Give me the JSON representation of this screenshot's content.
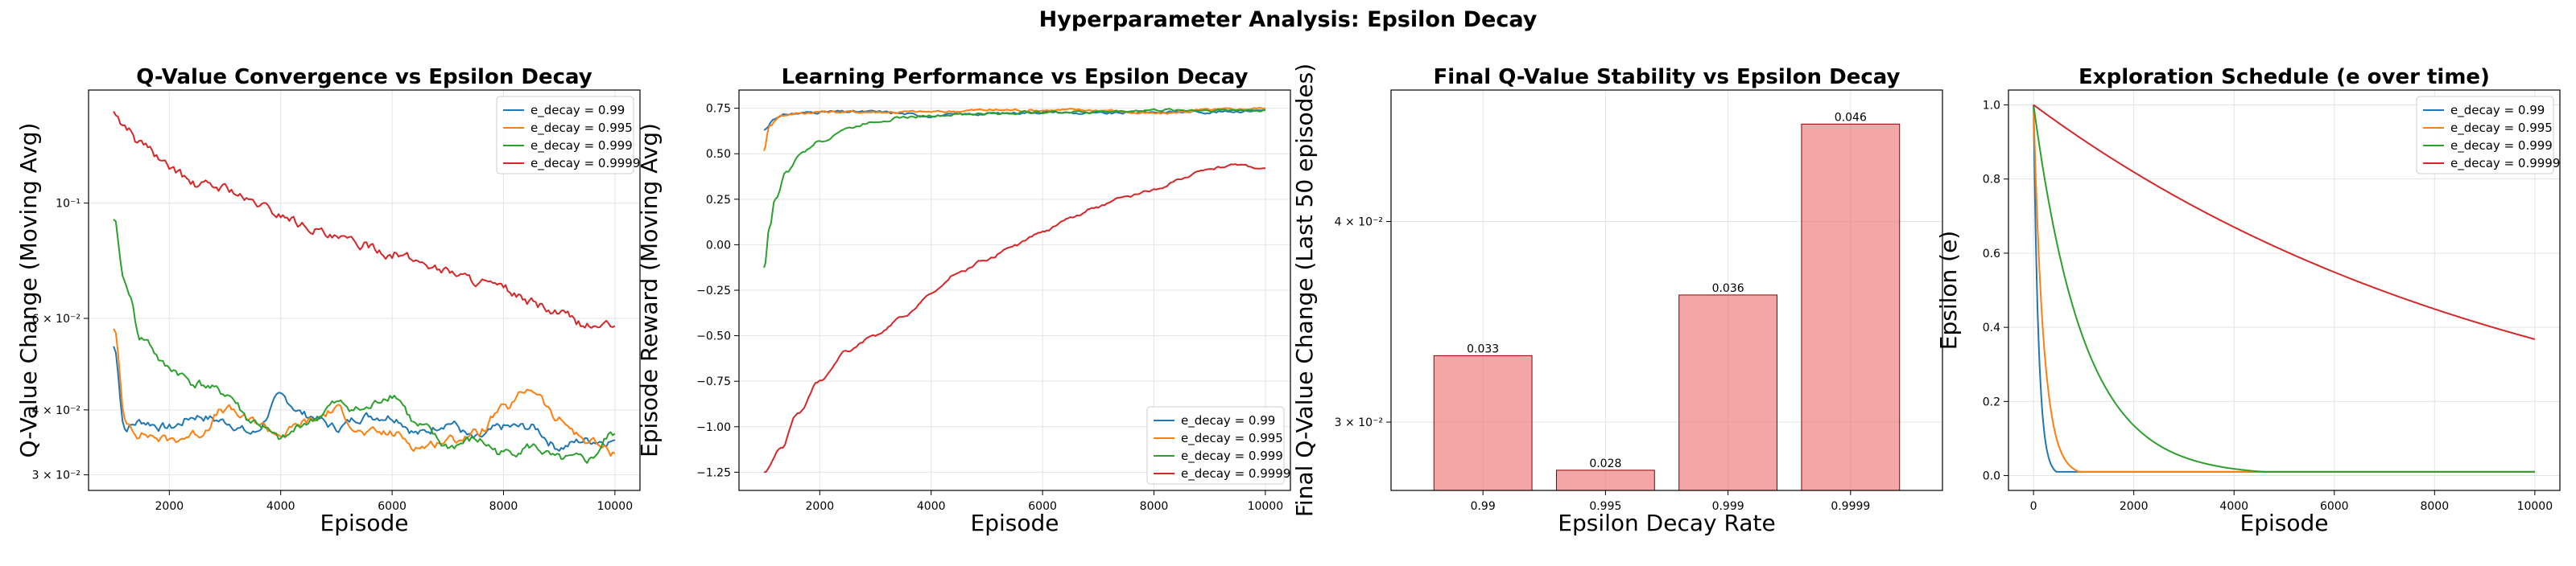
{
  "figure": {
    "title": "Hyperparameter Analysis: Epsilon Decay"
  },
  "colors": {
    "0.99": "#1f77b4",
    "0.995": "#ff7f0e",
    "0.999": "#2ca02c",
    "0.9999": "#d62728",
    "bar_fill": "#f08080",
    "bar_edge": "#8b0000"
  },
  "chart_data": [
    {
      "type": "line",
      "title": "Q-Value Convergence vs Epsilon Decay",
      "xlabel": "Episode",
      "ylabel": "Q-Value Change (Moving Avg)",
      "yscale": "log",
      "xlim": [
        550,
        10450
      ],
      "ylim": [
        0.028,
        0.165
      ],
      "xticks": [
        2000,
        4000,
        6000,
        8000,
        10000
      ],
      "yticks": [
        {
          "v": 0.03,
          "label": "3 × 10⁻²"
        },
        {
          "v": 0.04,
          "label": "4 × 10⁻²"
        },
        {
          "v": 0.06,
          "label": "6 × 10⁻²"
        },
        {
          "v": 0.1,
          "label": "10⁻¹"
        }
      ],
      "grid": true,
      "legend": "top-right",
      "series": [
        {
          "name": "e_decay = 0.99",
          "key": "0.99",
          "x": [
            1000,
            1200,
            1500,
            2000,
            2500,
            3000,
            3500,
            4000,
            4500,
            5000,
            5500,
            6000,
            6500,
            7000,
            7500,
            8000,
            8500,
            9000,
            9500,
            10000
          ],
          "y": [
            0.053,
            0.037,
            0.038,
            0.037,
            0.039,
            0.038,
            0.036,
            0.042,
            0.039,
            0.037,
            0.039,
            0.039,
            0.036,
            0.038,
            0.035,
            0.037,
            0.037,
            0.034,
            0.035,
            0.035
          ]
        },
        {
          "name": "e_decay = 0.995",
          "key": "0.995",
          "x": [
            1000,
            1200,
            1500,
            2000,
            2500,
            3000,
            3500,
            4000,
            4500,
            5000,
            5500,
            6000,
            6500,
            7000,
            7500,
            8000,
            8500,
            9000,
            9500,
            10000
          ],
          "y": [
            0.058,
            0.038,
            0.036,
            0.035,
            0.036,
            0.04,
            0.038,
            0.036,
            0.038,
            0.04,
            0.036,
            0.036,
            0.034,
            0.035,
            0.036,
            0.04,
            0.044,
            0.038,
            0.035,
            0.033
          ]
        },
        {
          "name": "e_decay = 0.999",
          "key": "0.999",
          "x": [
            1000,
            1200,
            1500,
            2000,
            2500,
            3000,
            3500,
            4000,
            4500,
            5000,
            5500,
            6000,
            6500,
            7000,
            7500,
            8000,
            8500,
            9000,
            9500,
            10000
          ],
          "y": [
            0.092,
            0.07,
            0.055,
            0.048,
            0.045,
            0.043,
            0.038,
            0.035,
            0.038,
            0.041,
            0.04,
            0.043,
            0.037,
            0.034,
            0.035,
            0.033,
            0.034,
            0.032,
            0.032,
            0.036
          ]
        },
        {
          "name": "e_decay = 0.9999",
          "key": "0.9999",
          "x": [
            1000,
            1200,
            1500,
            2000,
            2500,
            3000,
            3500,
            4000,
            4500,
            5000,
            5500,
            6000,
            6500,
            7000,
            7500,
            8000,
            8500,
            9000,
            9500,
            10000
          ],
          "y": [
            0.15,
            0.14,
            0.13,
            0.117,
            0.108,
            0.107,
            0.1,
            0.095,
            0.09,
            0.085,
            0.083,
            0.08,
            0.077,
            0.074,
            0.071,
            0.068,
            0.064,
            0.061,
            0.058,
            0.058
          ]
        }
      ]
    },
    {
      "type": "line",
      "title": "Learning Performance vs Epsilon Decay",
      "xlabel": "Episode",
      "ylabel": "Episode Reward (Moving Avg)",
      "xlim": [
        550,
        10450
      ],
      "ylim": [
        -1.35,
        0.85
      ],
      "xticks": [
        2000,
        4000,
        6000,
        8000,
        10000
      ],
      "yticks": [
        {
          "v": -1.25,
          "label": "−1.25"
        },
        {
          "v": -1.0,
          "label": "−1.00"
        },
        {
          "v": -0.75,
          "label": "−0.75"
        },
        {
          "v": -0.5,
          "label": "−0.50"
        },
        {
          "v": -0.25,
          "label": "−0.25"
        },
        {
          "v": 0.0,
          "label": "0.00"
        },
        {
          "v": 0.25,
          "label": "0.25"
        },
        {
          "v": 0.5,
          "label": "0.50"
        },
        {
          "v": 0.75,
          "label": "0.75"
        }
      ],
      "grid": true,
      "legend": "bottom-right",
      "series": [
        {
          "name": "e_decay = 0.99",
          "key": "0.99",
          "x": [
            1000,
            1200,
            1500,
            2000,
            3000,
            4000,
            5000,
            6000,
            7000,
            8000,
            9000,
            10000
          ],
          "y": [
            0.63,
            0.7,
            0.72,
            0.73,
            0.73,
            0.71,
            0.72,
            0.73,
            0.72,
            0.73,
            0.73,
            0.74
          ]
        },
        {
          "name": "e_decay = 0.995",
          "key": "0.995",
          "x": [
            1000,
            1100,
            1300,
            1500,
            2000,
            3000,
            4000,
            5000,
            6000,
            7000,
            8000,
            9000,
            10000
          ],
          "y": [
            0.52,
            0.66,
            0.71,
            0.72,
            0.73,
            0.73,
            0.73,
            0.74,
            0.74,
            0.74,
            0.72,
            0.74,
            0.75
          ]
        },
        {
          "name": "e_decay = 0.999",
          "key": "0.999",
          "x": [
            1000,
            1100,
            1200,
            1400,
            1700,
            2000,
            2500,
            3000,
            3500,
            4000,
            5000,
            6000,
            7000,
            8000,
            9000,
            10000
          ],
          "y": [
            -0.13,
            0.1,
            0.25,
            0.4,
            0.51,
            0.57,
            0.64,
            0.68,
            0.7,
            0.71,
            0.72,
            0.73,
            0.73,
            0.74,
            0.74,
            0.74
          ]
        },
        {
          "name": "e_decay = 0.9999",
          "key": "0.9999",
          "x": [
            1000,
            1300,
            1600,
            2000,
            2500,
            3000,
            3500,
            4000,
            4500,
            5000,
            5500,
            6000,
            6500,
            7000,
            7500,
            8000,
            8500,
            9000,
            9500,
            10000
          ],
          "y": [
            -1.25,
            -1.12,
            -0.93,
            -0.75,
            -0.58,
            -0.5,
            -0.4,
            -0.27,
            -0.15,
            -0.08,
            0.0,
            0.07,
            0.15,
            0.21,
            0.26,
            0.3,
            0.36,
            0.42,
            0.44,
            0.42
          ]
        }
      ]
    },
    {
      "type": "bar",
      "title": "Final Q-Value Stability vs Epsilon Decay",
      "xlabel": "Epsilon Decay Rate",
      "ylabel": "Final Q-Value Change (Last 50 episodes)",
      "yscale": "log",
      "categories": [
        "0.99",
        "0.995",
        "0.999",
        "0.9999"
      ],
      "values": [
        0.033,
        0.028,
        0.036,
        0.046
      ],
      "value_labels": [
        "0.033",
        "0.028",
        "0.036",
        "0.046"
      ],
      "ylim": [
        0.0272,
        0.0483
      ],
      "yticks": [
        {
          "v": 0.03,
          "label": "3 × 10⁻²"
        },
        {
          "v": 0.04,
          "label": "4 × 10⁻²"
        }
      ],
      "grid": true
    },
    {
      "type": "line",
      "title": "Exploration Schedule (e over time)",
      "xlabel": "Episode",
      "ylabel": "Epsilon (e)",
      "xlim": [
        -500,
        10500
      ],
      "ylim": [
        -0.04,
        1.04
      ],
      "xticks": [
        0,
        2000,
        4000,
        6000,
        8000,
        10000
      ],
      "yticks": [
        {
          "v": 0.0,
          "label": "0.0"
        },
        {
          "v": 0.2,
          "label": "0.2"
        },
        {
          "v": 0.4,
          "label": "0.4"
        },
        {
          "v": 0.6,
          "label": "0.6"
        },
        {
          "v": 0.8,
          "label": "0.8"
        },
        {
          "v": 1.0,
          "label": "1.0"
        }
      ],
      "grid": true,
      "legend": "top-right",
      "epsilon_min": 0.01,
      "episodes": 10000,
      "series": [
        {
          "name": "e_decay = 0.99",
          "key": "0.99",
          "decay": 0.99
        },
        {
          "name": "e_decay = 0.995",
          "key": "0.995",
          "decay": 0.995
        },
        {
          "name": "e_decay = 0.999",
          "key": "0.999",
          "decay": 0.999
        },
        {
          "name": "e_decay = 0.9999",
          "key": "0.9999",
          "decay": 0.9999
        }
      ]
    }
  ]
}
